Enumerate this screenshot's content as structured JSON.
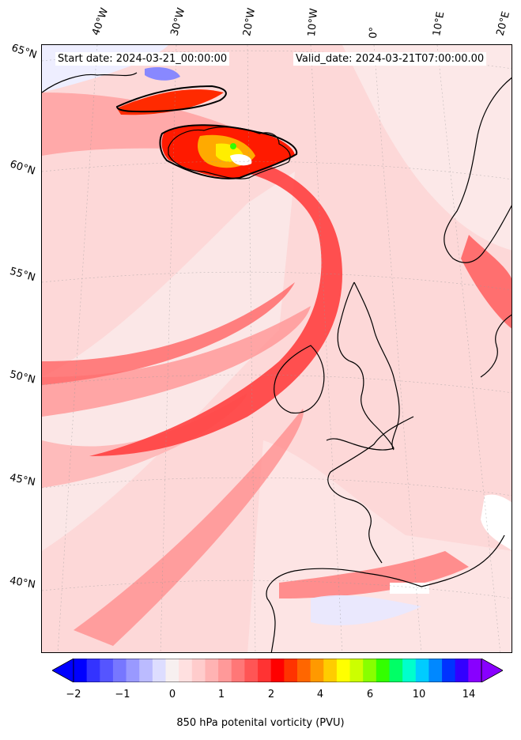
{
  "header": {
    "start_date": "Start date: 2024-03-21_00:00:00",
    "valid_date": "Valid_date: 2024-03-21T07:00:00.00"
  },
  "longitude_labels": [
    "40°W",
    "30°W",
    "20°W",
    "10°W",
    "0°",
    "10°E",
    "20°E"
  ],
  "latitude_labels": [
    "65°N",
    "60°N",
    "55°N",
    "50°N",
    "45°N",
    "40°N"
  ],
  "colorbar": {
    "label": "850 hPa potenital vorticity (PVU)",
    "ticks": [
      "−2",
      "−1",
      "0",
      "1",
      "2",
      "4",
      "6",
      "10",
      "14"
    ],
    "colors": [
      "#0000ff",
      "#3333ff",
      "#5555ff",
      "#7777ff",
      "#9999ff",
      "#bbbbff",
      "#ddddff",
      "#f7f0f0",
      "#ffe0e0",
      "#ffcccc",
      "#ffb3b3",
      "#ff9999",
      "#ff7777",
      "#ff5555",
      "#ff3333",
      "#ff0000",
      "#ff3300",
      "#ff6600",
      "#ff9900",
      "#ffcc00",
      "#ffff00",
      "#ccff00",
      "#88ff00",
      "#33ff00",
      "#00ff66",
      "#00ffcc",
      "#00ccff",
      "#0088ff",
      "#0033ff",
      "#3300ff",
      "#8800ff"
    ]
  }
}
